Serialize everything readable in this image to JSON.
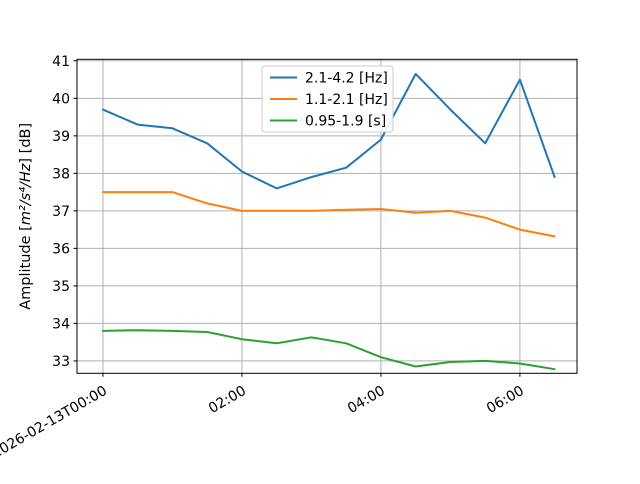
{
  "chart_data": {
    "type": "line",
    "title": "",
    "xlabel": "",
    "ylabel": "Amplitude [m²/s⁴/Hz] [dB]",
    "grid": true,
    "legend_position": "upper center inside plot",
    "x_minutes": [
      0,
      30,
      60,
      90,
      120,
      150,
      180,
      210,
      240,
      270,
      300,
      330,
      360,
      390
    ],
    "series": [
      {
        "name": "2.1-4.2 [Hz]",
        "color": "#1f77b4",
        "values": [
          39.7,
          39.3,
          39.2,
          38.8,
          38.05,
          37.6,
          37.9,
          38.15,
          38.9,
          40.65,
          39.7,
          38.8,
          40.5,
          37.9
        ]
      },
      {
        "name": "1.1-2.1 [Hz]",
        "color": "#ff7f0e",
        "values": [
          37.5,
          37.5,
          37.5,
          37.2,
          37.0,
          37.0,
          37.0,
          37.03,
          37.05,
          36.95,
          37.0,
          36.82,
          36.5,
          36.32
        ]
      },
      {
        "name": "0.95-1.9 [s]",
        "color": "#2ca02c",
        "values": [
          33.8,
          33.82,
          33.8,
          33.77,
          33.58,
          33.47,
          33.63,
          33.47,
          33.1,
          32.85,
          32.97,
          33.0,
          32.93,
          32.78
        ]
      }
    ],
    "x_ticks": [
      {
        "minutes": 0,
        "label": "2026-02-13T00:00"
      },
      {
        "minutes": 120,
        "label": "02:00"
      },
      {
        "minutes": 240,
        "label": "04:00"
      },
      {
        "minutes": 360,
        "label": "06:00"
      }
    ],
    "y_ticks": [
      "33",
      "34",
      "35",
      "36",
      "37",
      "38",
      "39",
      "40",
      "41"
    ],
    "ylim": [
      32.67,
      41.04
    ],
    "xlim_minutes": [
      -22.4,
      409.3
    ],
    "colors": {
      "grid": "#b0b0b0",
      "spine": "#000000",
      "background": "#ffffff",
      "legend_border": "#cccccc",
      "legend_background": "#ffffff"
    }
  }
}
